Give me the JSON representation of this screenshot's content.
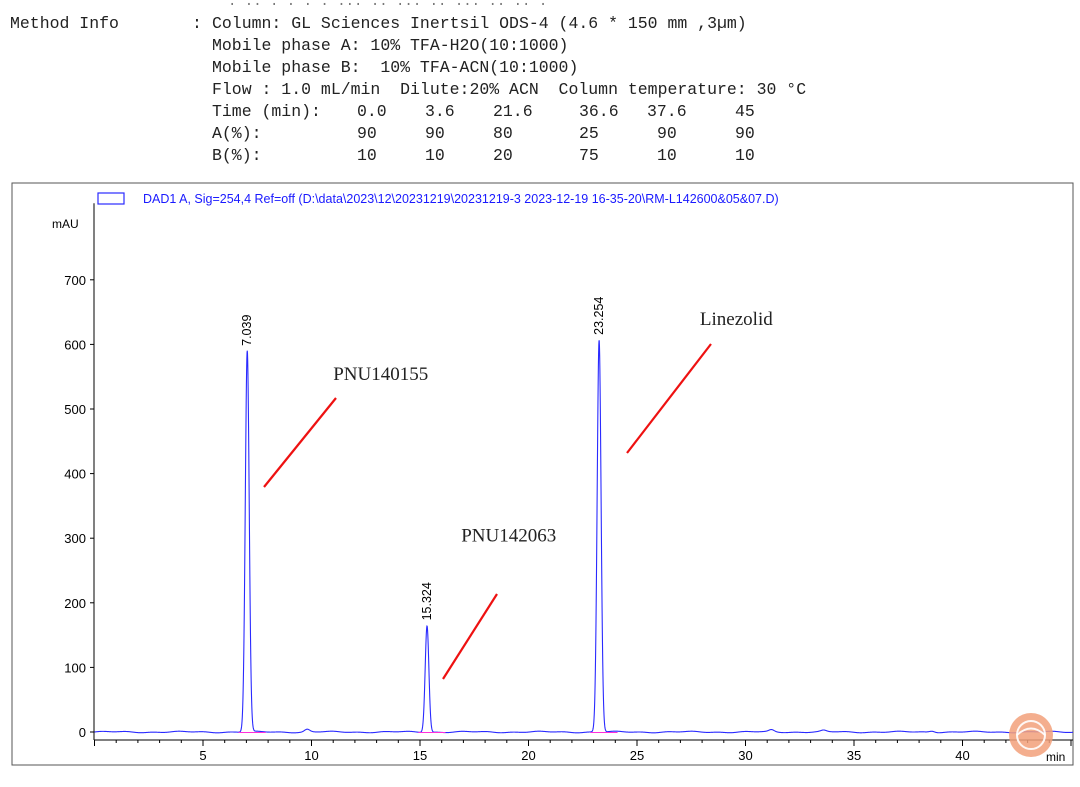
{
  "method": {
    "title": "Method Info",
    "colon": ":",
    "column": "Column: GL Sciences Inertsil ODS-4 (4.6 * 150 mm ,3µm)",
    "phase_a": "Mobile phase A: 10% TFA-H2O(10:1000)",
    "phase_b": "Mobile phase B:  10% TFA-ACN(10:1000)",
    "flow": "Flow : 1.0 mL/min  Dilute:20% ACN  Column temperature: 30 °C",
    "gradient": {
      "time_label": "Time (min):",
      "a_label": "A(%):",
      "b_label": "B(%):",
      "time": [
        "0.0",
        "3.6",
        "21.6",
        "36.6",
        "37.6",
        "45"
      ],
      "a": [
        "90",
        "90",
        "80",
        "25",
        "90",
        "90"
      ],
      "b": [
        "10",
        "10",
        "20",
        "75",
        "10",
        "10"
      ]
    }
  },
  "chart_data": {
    "type": "line",
    "title": "DAD1 A, Sig=254,4 Ref=off (D:\\data\\2023\\12\\20231219\\20231219-3 2023-12-19 16-35-20\\RM-L142600&05&07.D)",
    "xlabel": "min",
    "ylabel": "mAU",
    "xlim": [
      0,
      45
    ],
    "ylim": [
      -20,
      800
    ],
    "x_ticks": [
      5,
      10,
      15,
      20,
      25,
      30,
      35,
      40
    ],
    "y_ticks": [
      0,
      100,
      200,
      300,
      400,
      500,
      600,
      700
    ],
    "series_color": "#2a2aff",
    "baseline_color": "#ff2fd8",
    "annotation_color": "#ee1111",
    "peaks": [
      {
        "rt": 7.039,
        "rt_label": "7.039",
        "height": 590,
        "width": 0.09
      },
      {
        "rt": 15.324,
        "rt_label": "15.324",
        "height": 165,
        "width": 0.085
      },
      {
        "rt": 23.254,
        "rt_label": "23.254",
        "height": 607,
        "width": 0.09
      }
    ],
    "minor_peaks": [
      {
        "rt": 9.8,
        "height": 4
      },
      {
        "rt": 31.2,
        "height": 3
      },
      {
        "rt": 33.6,
        "height": 2
      },
      {
        "rt": 38.6,
        "height": 2
      }
    ],
    "annotations": [
      {
        "text": "PNU140155",
        "x_min": 11.0,
        "y_mau": 545
      },
      {
        "text": "PNU142063",
        "x_min": 16.9,
        "y_mau": 295
      },
      {
        "text": "Linezolid",
        "x_min": 27.9,
        "y_mau": 630
      }
    ]
  }
}
